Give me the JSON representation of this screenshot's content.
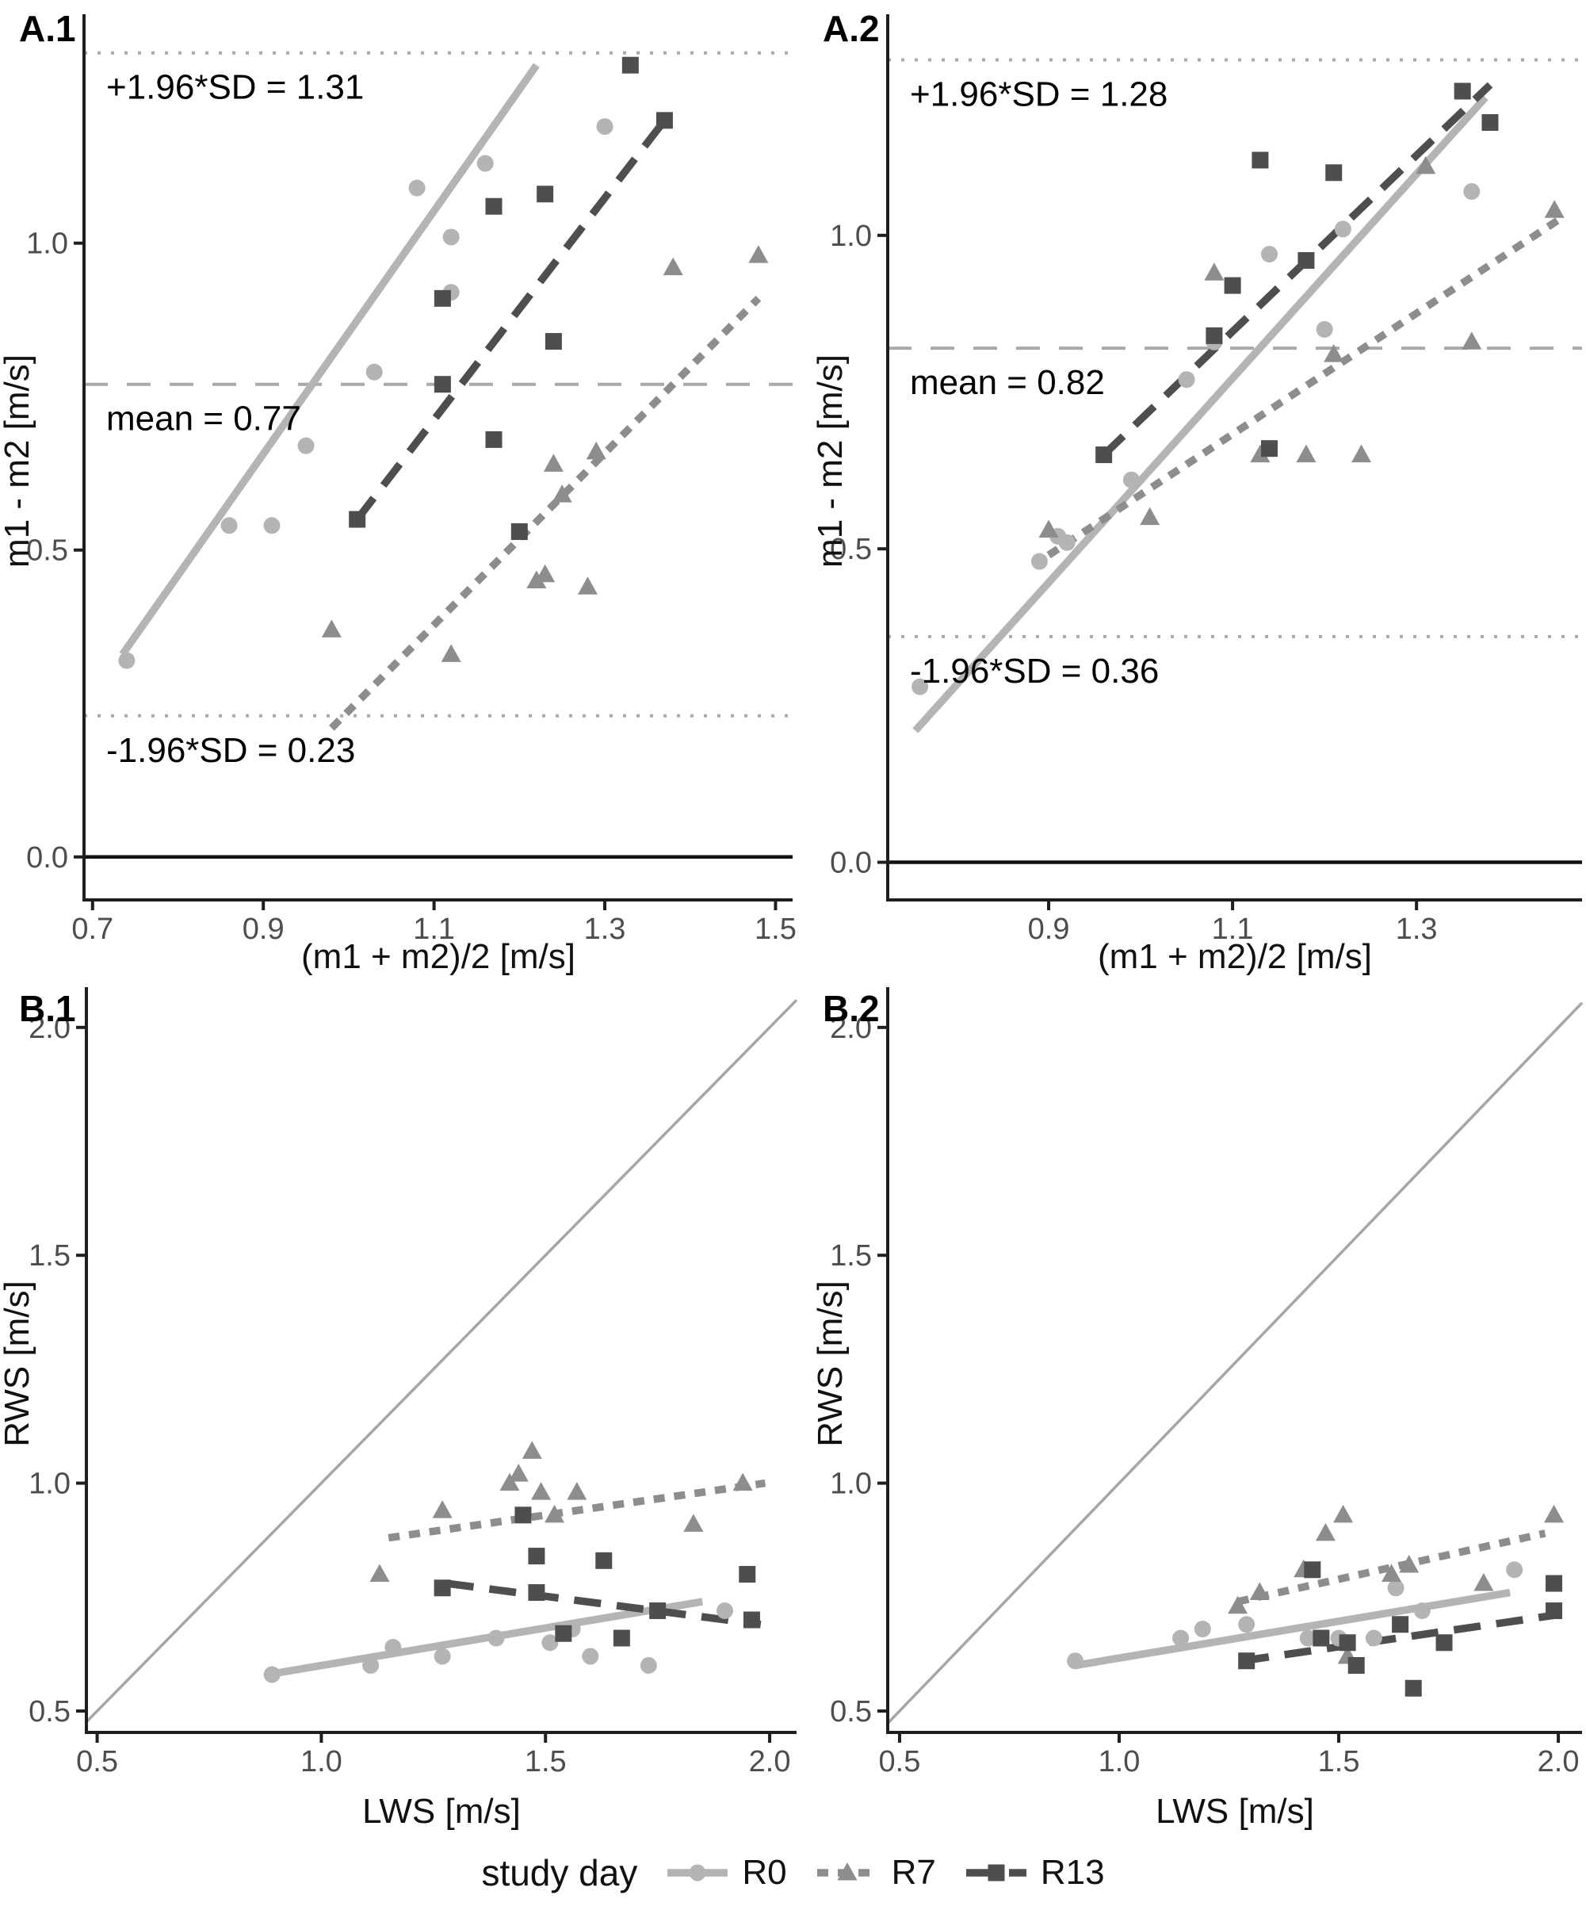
{
  "figure": {
    "background": "#ffffff",
    "panel_labels": [
      "A.1",
      "A.2",
      "B.1",
      "B.2"
    ]
  },
  "colors": {
    "r0": "#b4b4b4",
    "r7": "#8d8d8d",
    "r13": "#4e4e4e",
    "ref_line": "#a9a9a9",
    "identity_line": "#a6a6a6",
    "axis": "#1f1f1f",
    "tick_label": "#4d4d4d",
    "text": "#000000"
  },
  "legend": {
    "title": "study day",
    "entries": [
      {
        "label": "R0",
        "marker": "circle",
        "line": "solid",
        "color": "#b4b4b4"
      },
      {
        "label": "R7",
        "marker": "triangle",
        "line": "shortdash",
        "color": "#8d8d8d"
      },
      {
        "label": "R13",
        "marker": "square",
        "line": "longdash",
        "color": "#4e4e4e"
      }
    ]
  },
  "chart_data": [
    {
      "id": "a1",
      "type": "scatter",
      "title": "A.1",
      "xlabel": "(m1 + m2)/2 [m/s]",
      "ylabel": "m1 - m2 [m/s]",
      "xlim": [
        0.69,
        1.52
      ],
      "ylim": [
        -0.07,
        1.36
      ],
      "xticks": [
        "0.7",
        "0.9",
        "1.1",
        "1.3",
        "1.5"
      ],
      "yticks": [
        "0.0",
        "0.5",
        "1.0"
      ],
      "grid": false,
      "zero_line": 0.0,
      "identity_line": false,
      "ref_lines": [
        {
          "value": 1.31,
          "style": "dotted",
          "label": "+1.96*SD = 1.31"
        },
        {
          "value": 0.77,
          "style": "dashed",
          "label": "mean = 0.77"
        },
        {
          "value": 0.23,
          "style": "dotted",
          "label": "-1.96*SD = 0.23"
        }
      ],
      "series": [
        {
          "name": "R0",
          "marker": "circle",
          "line": "solid",
          "trend": [
            [
              0.735,
              0.33
            ],
            [
              1.22,
              1.29
            ]
          ],
          "points": [
            [
              0.74,
              0.32
            ],
            [
              0.86,
              0.54
            ],
            [
              0.91,
              0.54
            ],
            [
              0.95,
              0.67
            ],
            [
              1.03,
              0.79
            ],
            [
              1.08,
              1.09
            ],
            [
              1.12,
              1.01
            ],
            [
              1.12,
              0.92
            ],
            [
              1.16,
              1.13
            ],
            [
              1.3,
              1.19
            ]
          ]
        },
        {
          "name": "R7",
          "marker": "triangle",
          "line": "shortdash",
          "trend": [
            [
              0.98,
              0.21
            ],
            [
              1.48,
              0.91
            ]
          ],
          "points": [
            [
              0.98,
              0.37
            ],
            [
              1.12,
              0.33
            ],
            [
              1.22,
              0.45
            ],
            [
              1.23,
              0.46
            ],
            [
              1.24,
              0.64
            ],
            [
              1.25,
              0.59
            ],
            [
              1.28,
              0.44
            ],
            [
              1.29,
              0.66
            ],
            [
              1.38,
              0.96
            ],
            [
              1.48,
              0.98
            ]
          ]
        },
        {
          "name": "R13",
          "marker": "square",
          "line": "longdash",
          "trend": [
            [
              1.01,
              0.55
            ],
            [
              1.37,
              1.2
            ]
          ],
          "points": [
            [
              1.01,
              0.55
            ],
            [
              1.11,
              0.91
            ],
            [
              1.11,
              0.77
            ],
            [
              1.17,
              0.68
            ],
            [
              1.17,
              1.06
            ],
            [
              1.2,
              0.53
            ],
            [
              1.23,
              1.08
            ],
            [
              1.24,
              0.84
            ],
            [
              1.33,
              1.29
            ],
            [
              1.37,
              1.2
            ]
          ]
        }
      ]
    },
    {
      "id": "a2",
      "type": "scatter",
      "title": "A.2",
      "xlabel": "(m1 + m2)/2 [m/s]",
      "ylabel": "m1 - m2 [m/s]",
      "xlim": [
        0.725,
        1.48
      ],
      "ylim": [
        -0.06,
        1.34
      ],
      "xticks": [
        "0.9",
        "1.1",
        "1.3"
      ],
      "yticks": [
        "0.0",
        "0.5",
        "1.0"
      ],
      "grid": false,
      "zero_line": 0.0,
      "identity_line": false,
      "ref_lines": [
        {
          "value": 1.28,
          "style": "dotted",
          "label": "+1.96*SD = 1.28"
        },
        {
          "value": 0.82,
          "style": "dashed",
          "label": "mean = 0.82"
        },
        {
          "value": 0.36,
          "style": "dotted",
          "label": "-1.96*SD = 0.36"
        }
      ],
      "series": [
        {
          "name": "R0",
          "marker": "circle",
          "line": "solid",
          "trend": [
            [
              0.755,
              0.21
            ],
            [
              1.375,
              1.22
            ]
          ],
          "points": [
            [
              0.76,
              0.28
            ],
            [
              0.89,
              0.48
            ],
            [
              0.91,
              0.52
            ],
            [
              0.92,
              0.51
            ],
            [
              0.99,
              0.61
            ],
            [
              1.05,
              0.77
            ],
            [
              1.08,
              0.83
            ],
            [
              1.14,
              0.97
            ],
            [
              1.2,
              0.85
            ],
            [
              1.22,
              1.01
            ],
            [
              1.36,
              1.07
            ]
          ]
        },
        {
          "name": "R7",
          "marker": "triangle",
          "line": "shortdash",
          "trend": [
            [
              0.9,
              0.49
            ],
            [
              1.46,
              1.03
            ]
          ],
          "points": [
            [
              0.9,
              0.53
            ],
            [
              1.01,
              0.55
            ],
            [
              1.08,
              0.94
            ],
            [
              1.13,
              0.65
            ],
            [
              1.18,
              0.65
            ],
            [
              1.21,
              0.81
            ],
            [
              1.24,
              0.65
            ],
            [
              1.31,
              1.11
            ],
            [
              1.36,
              0.83
            ],
            [
              1.45,
              1.04
            ]
          ]
        },
        {
          "name": "R13",
          "marker": "square",
          "line": "longdash",
          "trend": [
            [
              0.96,
              0.65
            ],
            [
              1.38,
              1.24
            ]
          ],
          "points": [
            [
              0.96,
              0.65
            ],
            [
              1.08,
              0.84
            ],
            [
              1.1,
              0.92
            ],
            [
              1.13,
              1.12
            ],
            [
              1.14,
              0.66
            ],
            [
              1.18,
              0.96
            ],
            [
              1.21,
              1.1
            ],
            [
              1.35,
              1.23
            ],
            [
              1.38,
              1.18
            ]
          ]
        }
      ]
    },
    {
      "id": "b1",
      "type": "scatter",
      "title": "B.1",
      "xlabel": "LWS [m/s]",
      "ylabel": "RWS [m/s]",
      "xlim": [
        0.476,
        2.06
      ],
      "ylim": [
        0.453,
        2.071
      ],
      "xticks": [
        "0.5",
        "1.0",
        "1.5",
        "2.0"
      ],
      "yticks": [
        "0.5",
        "1.0",
        "1.5",
        "2.0"
      ],
      "grid": false,
      "identity_line": true,
      "ref_lines": [],
      "series": [
        {
          "name": "R0",
          "marker": "circle",
          "line": "solid",
          "trend": [
            [
              0.88,
              0.58
            ],
            [
              1.85,
              0.74
            ]
          ],
          "points": [
            [
              0.89,
              0.58
            ],
            [
              1.11,
              0.6
            ],
            [
              1.16,
              0.64
            ],
            [
              1.27,
              0.62
            ],
            [
              1.39,
              0.66
            ],
            [
              1.51,
              0.65
            ],
            [
              1.56,
              0.68
            ],
            [
              1.6,
              0.62
            ],
            [
              1.73,
              0.6
            ],
            [
              1.9,
              0.72
            ]
          ]
        },
        {
          "name": "R7",
          "marker": "triangle",
          "line": "shortdash",
          "trend": [
            [
              1.15,
              0.88
            ],
            [
              1.99,
              1.0
            ]
          ],
          "points": [
            [
              1.13,
              0.8
            ],
            [
              1.27,
              0.94
            ],
            [
              1.42,
              1.0
            ],
            [
              1.44,
              1.02
            ],
            [
              1.47,
              1.07
            ],
            [
              1.49,
              0.98
            ],
            [
              1.52,
              0.93
            ],
            [
              1.57,
              0.98
            ],
            [
              1.83,
              0.91
            ],
            [
              1.94,
              1.0
            ]
          ]
        },
        {
          "name": "R13",
          "marker": "square",
          "line": "longdash",
          "trend": [
            [
              1.28,
              0.78
            ],
            [
              1.98,
              0.69
            ]
          ],
          "points": [
            [
              1.27,
              0.77
            ],
            [
              1.45,
              0.93
            ],
            [
              1.48,
              0.84
            ],
            [
              1.48,
              0.76
            ],
            [
              1.54,
              0.67
            ],
            [
              1.63,
              0.83
            ],
            [
              1.67,
              0.66
            ],
            [
              1.75,
              0.72
            ],
            [
              1.95,
              0.8
            ],
            [
              1.96,
              0.7
            ]
          ]
        }
      ]
    },
    {
      "id": "b2",
      "type": "scatter",
      "title": "B.2",
      "xlabel": "LWS [m/s]",
      "ylabel": "RWS [m/s]",
      "xlim": [
        0.473,
        2.054
      ],
      "ylim": [
        0.453,
        2.071
      ],
      "xticks": [
        "0.5",
        "1.0",
        "1.5",
        "2.0"
      ],
      "yticks": [
        "0.5",
        "1.0",
        "1.5",
        "2.0"
      ],
      "grid": false,
      "identity_line": true,
      "ref_lines": [],
      "series": [
        {
          "name": "R0",
          "marker": "circle",
          "line": "solid",
          "trend": [
            [
              0.9,
              0.6
            ],
            [
              1.89,
              0.76
            ]
          ],
          "points": [
            [
              0.9,
              0.61
            ],
            [
              1.14,
              0.66
            ],
            [
              1.19,
              0.68
            ],
            [
              1.29,
              0.69
            ],
            [
              1.43,
              0.66
            ],
            [
              1.5,
              0.66
            ],
            [
              1.58,
              0.66
            ],
            [
              1.63,
              0.77
            ],
            [
              1.69,
              0.72
            ],
            [
              1.9,
              0.81
            ]
          ]
        },
        {
          "name": "R7",
          "marker": "triangle",
          "line": "shortdash",
          "trend": [
            [
              1.27,
              0.74
            ],
            [
              1.97,
              0.89
            ]
          ],
          "points": [
            [
              1.27,
              0.73
            ],
            [
              1.32,
              0.76
            ],
            [
              1.42,
              0.81
            ],
            [
              1.47,
              0.89
            ],
            [
              1.51,
              0.93
            ],
            [
              1.52,
              0.62
            ],
            [
              1.62,
              0.8
            ],
            [
              1.66,
              0.82
            ],
            [
              1.83,
              0.78
            ],
            [
              1.99,
              0.93
            ]
          ]
        },
        {
          "name": "R13",
          "marker": "square",
          "line": "longdash",
          "trend": [
            [
              1.28,
              0.61
            ],
            [
              1.99,
              0.71
            ]
          ],
          "points": [
            [
              1.29,
              0.61
            ],
            [
              1.44,
              0.81
            ],
            [
              1.46,
              0.66
            ],
            [
              1.52,
              0.65
            ],
            [
              1.54,
              0.6
            ],
            [
              1.64,
              0.69
            ],
            [
              1.67,
              0.55
            ],
            [
              1.74,
              0.65
            ],
            [
              1.99,
              0.78
            ],
            [
              1.99,
              0.72
            ]
          ]
        }
      ]
    }
  ]
}
